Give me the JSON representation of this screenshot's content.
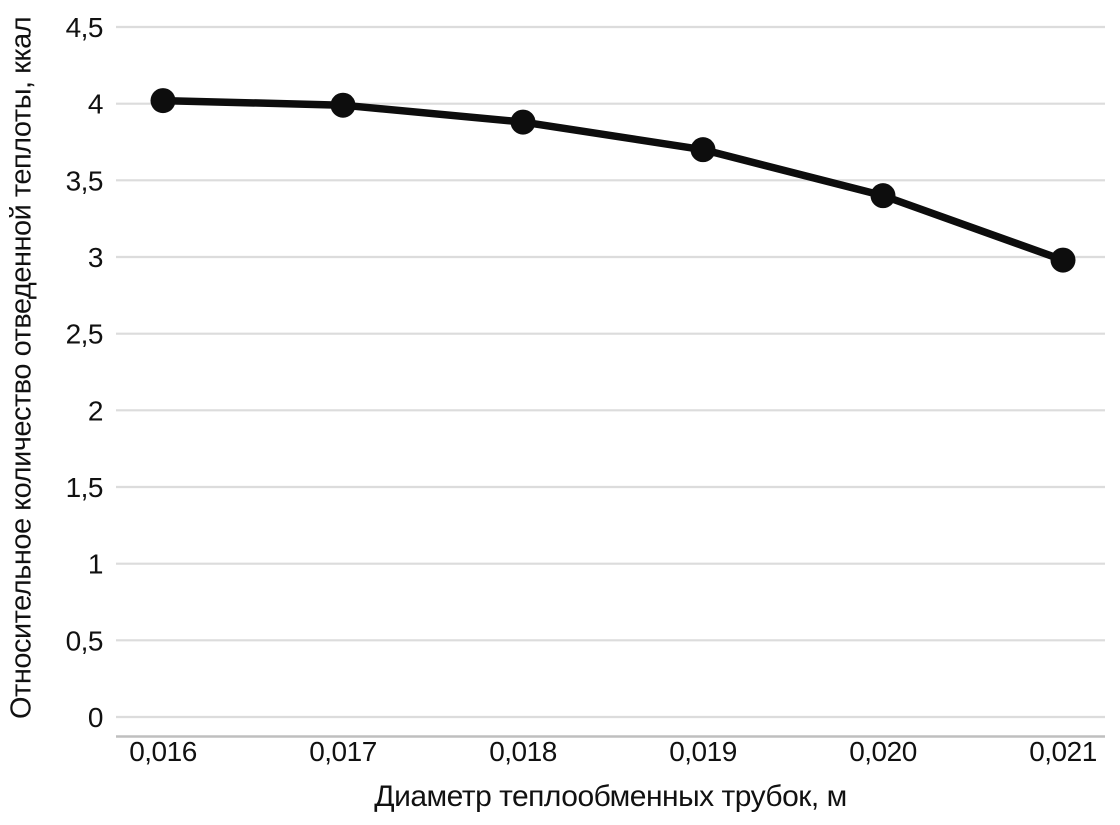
{
  "chart_data": {
    "type": "line",
    "title": "",
    "xlabel": "Диаметр теплообменных трубок, м",
    "ylabel": "Относительное количество отведенной теплоты, ккал",
    "categories": [
      "0,016",
      "0,017",
      "0,018",
      "0,019",
      "0,020",
      "0,021"
    ],
    "x_values": [
      0.016,
      0.017,
      0.018,
      0.019,
      0.02,
      0.021
    ],
    "series": [
      {
        "values": [
          4.02,
          3.99,
          3.88,
          3.7,
          3.4,
          2.98
        ]
      }
    ],
    "ylim": [
      0,
      4.5
    ],
    "y_tick_step": 0.5,
    "y_tick_labels": [
      "0",
      "0,5",
      "1",
      "1,5",
      "2",
      "2,5",
      "3",
      "3,5",
      "4",
      "4,5"
    ],
    "grid": "horizontal",
    "legend": "none",
    "marker": "circle",
    "colors": {
      "line": "#0d0d0d",
      "marker": "#0d0d0d",
      "gridline": "#dcdcdc",
      "axis_line": "#bfbfbf",
      "text": "#111111",
      "background": "#ffffff"
    }
  }
}
